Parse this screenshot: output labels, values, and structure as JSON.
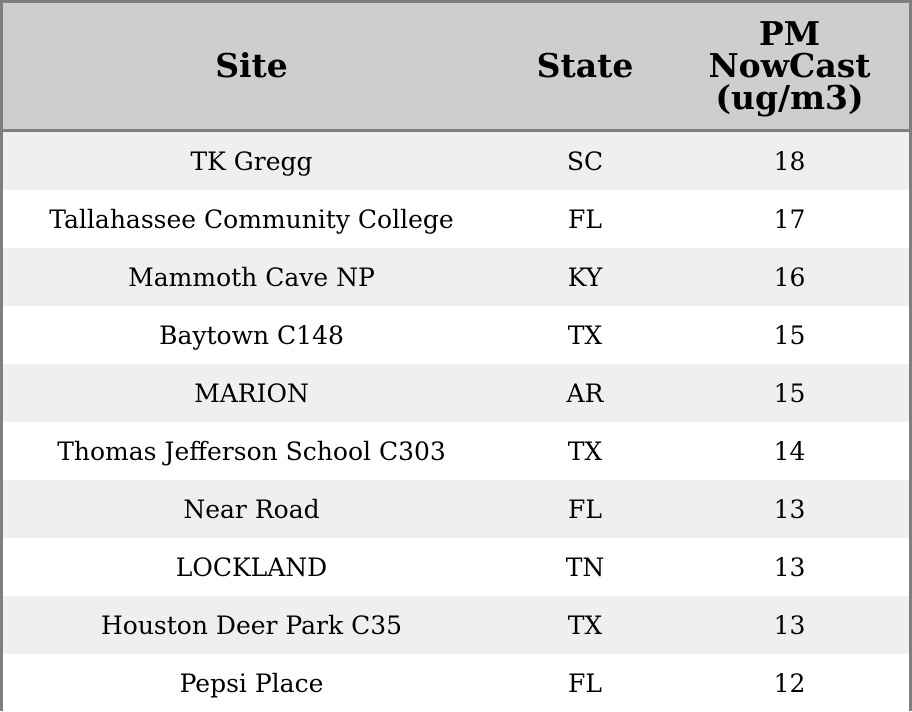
{
  "chart_data": {
    "type": "table",
    "columns": [
      "Site",
      "State",
      "PM NowCast (ug/m3)"
    ],
    "column_lines": [
      [
        "Site"
      ],
      [
        "State"
      ],
      [
        "PM",
        "NowCast",
        "(ug/m3)"
      ]
    ],
    "rows": [
      {
        "site": "TK Gregg",
        "state": "SC",
        "pm": "18"
      },
      {
        "site": "Tallahassee Community College",
        "state": "FL",
        "pm": "17"
      },
      {
        "site": "Mammoth Cave NP",
        "state": "KY",
        "pm": "16"
      },
      {
        "site": "Baytown C148",
        "state": "TX",
        "pm": "15"
      },
      {
        "site": "MARION",
        "state": "AR",
        "pm": "15"
      },
      {
        "site": "Thomas Jefferson School C303",
        "state": "TX",
        "pm": "14"
      },
      {
        "site": "Near Road",
        "state": "FL",
        "pm": "13"
      },
      {
        "site": "LOCKLAND",
        "state": "TN",
        "pm": "13"
      },
      {
        "site": "Houston Deer Park C35",
        "state": "TX",
        "pm": "13"
      },
      {
        "site": "Pepsi Place",
        "state": "FL",
        "pm": "12"
      }
    ]
  },
  "colors": {
    "header_bg": "#cecece",
    "stripe": "#efefef",
    "border": "#7f7f7f"
  }
}
